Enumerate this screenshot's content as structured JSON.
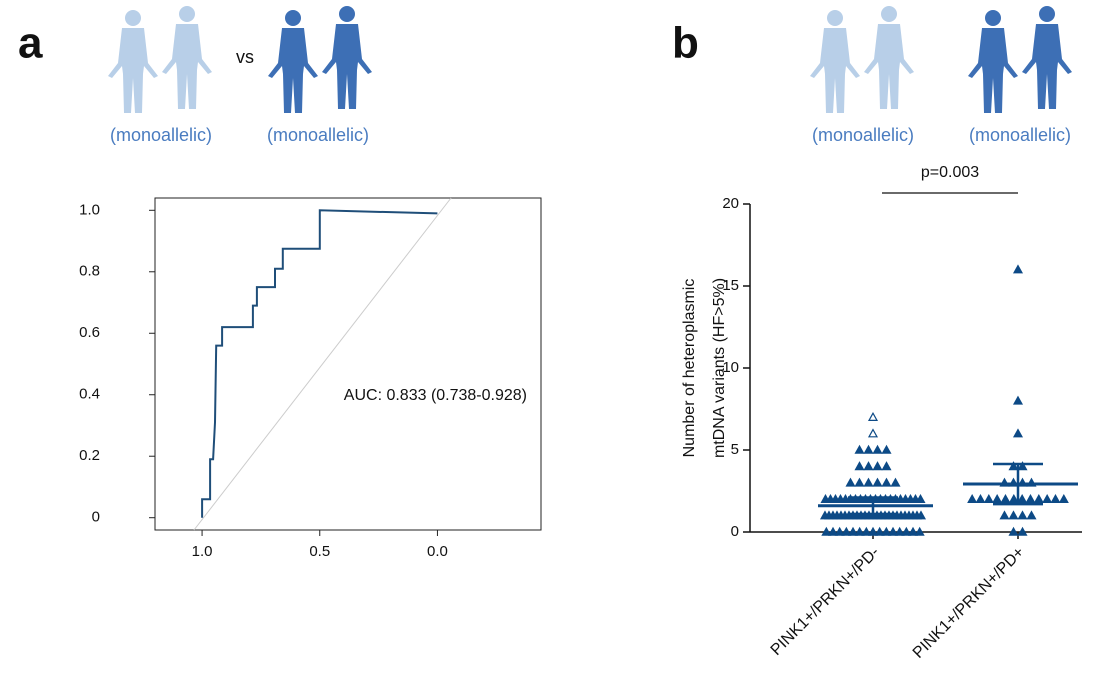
{
  "panels": {
    "a": {
      "label": "a",
      "vs": "vs",
      "left_caption": "(monoallelic)",
      "right_caption": "(monoallelic)"
    },
    "b": {
      "label": "b",
      "left_caption": "(monoallelic)",
      "right_caption": "(monoallelic)"
    }
  },
  "chart_data": [
    {
      "type": "line",
      "x": [
        1.0,
        1.0,
        0.966,
        0.966,
        0.953,
        0.945,
        0.94,
        0.915,
        0.915,
        0.784,
        0.784,
        0.767,
        0.767,
        0.69,
        0.69,
        0.657,
        0.657,
        0.5,
        0.5,
        0.5,
        0.0
      ],
      "series": [
        {
          "color": "#1f4e79",
          "values": [
            0,
            0.06,
            0.06,
            0.19,
            0.19,
            0.31,
            0.56,
            0.56,
            0.62,
            0.62,
            0.69,
            0.69,
            0.75,
            0.75,
            0.81,
            0.81,
            0.875,
            0.875,
            0.94,
            1.0,
            0.99
          ]
        }
      ],
      "xlim": [
        1.2,
        -0.44
      ],
      "ylim": [
        -0.04,
        1.04
      ],
      "xticks": [
        {
          "value": 1,
          "label": "1.0"
        },
        {
          "value": 0.5,
          "label": "0.5"
        },
        {
          "value": 0,
          "label": "0.0"
        }
      ],
      "yticks": [
        0,
        0.2,
        0.4,
        0.6,
        0.8,
        {
          "value": 1,
          "label": "1.0"
        }
      ],
      "annotation": "AUC: 0.833 (0.738-0.928)"
    },
    {
      "type": "dot",
      "ylabel": [
        "Number of heteroplasmic",
        "mtDNA variants (HF>5%)"
      ],
      "categories": [
        "PINK1+/PRKN+/PD-",
        "PINK1+/PRKN+/PD+"
      ],
      "color": "#0d4a86",
      "groups": [
        {
          "values": [
            0,
            0,
            0,
            0,
            0,
            0,
            0,
            0,
            0,
            0,
            0,
            0,
            0,
            0,
            0,
            1,
            1,
            1,
            1,
            1,
            1,
            1,
            1,
            1,
            1,
            1,
            1,
            1,
            1,
            1,
            1,
            1,
            1,
            1,
            1,
            1,
            1,
            1,
            1,
            1,
            2,
            2,
            2,
            2,
            2,
            2,
            2,
            2,
            2,
            2,
            2,
            2,
            2,
            2,
            2,
            2,
            2,
            2,
            2,
            2,
            3,
            3,
            3,
            3,
            3,
            3,
            4,
            4,
            4,
            4,
            5,
            5,
            5,
            5
          ],
          "open_values": [
            6,
            7
          ],
          "mean": 1.6,
          "error": [
            1.1,
            2.1
          ]
        },
        {
          "values": [
            0,
            0,
            1,
            1,
            1,
            1,
            2,
            2,
            2,
            2,
            2,
            2,
            2,
            2,
            2,
            2,
            2,
            2,
            3,
            3,
            3,
            3,
            4,
            4,
            6,
            8,
            16
          ],
          "open_values": [],
          "mean": 2.93,
          "error": [
            1.7,
            4.15
          ]
        }
      ],
      "ylim": [
        0,
        20
      ],
      "yticks": [
        0,
        5,
        10,
        15,
        20
      ],
      "annotation": "p=0.003"
    }
  ]
}
